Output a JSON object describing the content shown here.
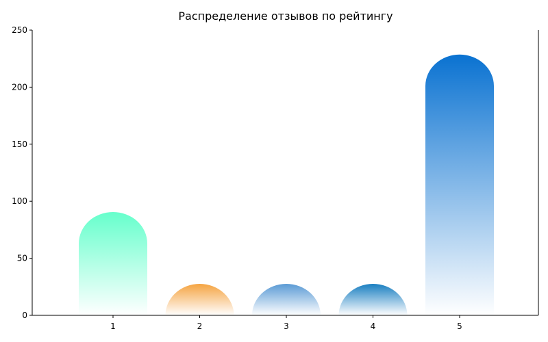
{
  "chart_data": {
    "type": "bar",
    "title": "Распределение отзывов по рейтингу",
    "xlabel": "",
    "ylabel": "",
    "categories": [
      "1",
      "2",
      "3",
      "4",
      "5"
    ],
    "values": [
      63,
      0,
      0,
      0,
      201
    ],
    "ylim": [
      0,
      250
    ],
    "yticks": [
      0,
      50,
      100,
      150,
      200,
      250
    ],
    "ytick_labels": [
      "0",
      "50",
      "100",
      "150",
      "200",
      "250"
    ],
    "grid": false,
    "legend": "none",
    "bar_style": "rounded-top-gradient",
    "colors": [
      "#66ffcc",
      "#f5a442",
      "#5b9bd5",
      "#1a7fc1",
      "#0a72d1"
    ]
  }
}
